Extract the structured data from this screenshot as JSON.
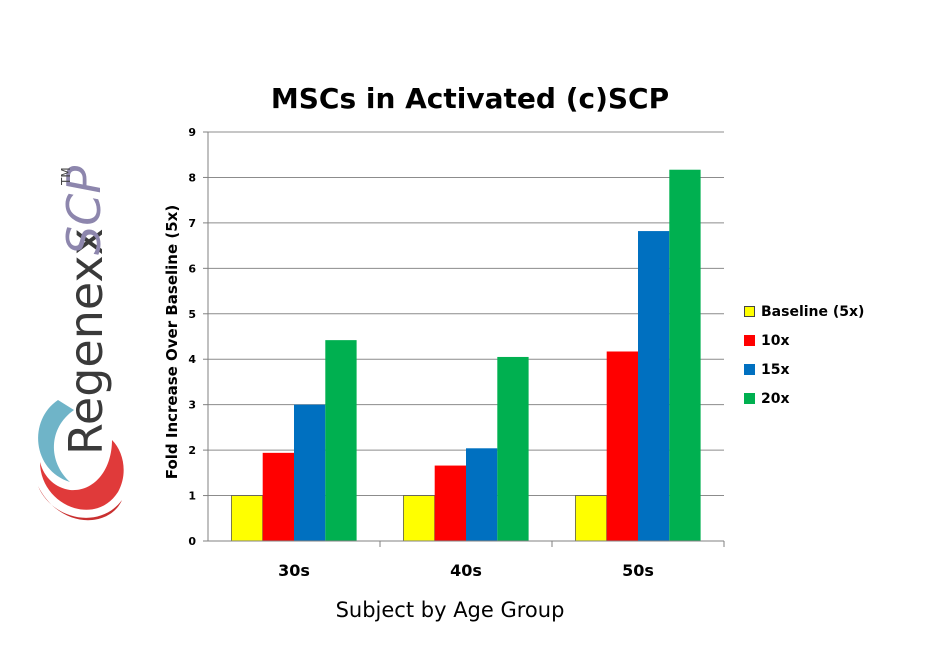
{
  "logo": {
    "brand": "Regenexx",
    "suffix": "SCP",
    "trademark": "TM"
  },
  "chart_data": {
    "type": "bar",
    "title": "MSCs in Activated (c)SCP",
    "xlabel": "Subject by Age Group",
    "ylabel": "Fold Increase Over Baseline (5x)",
    "categories": [
      "30s",
      "40s",
      "50s"
    ],
    "ylim": [
      0,
      9
    ],
    "yticks": [
      0,
      1,
      2,
      3,
      4,
      5,
      6,
      7,
      8,
      9
    ],
    "grid": true,
    "legend_position": "right",
    "series": [
      {
        "name": "Baseline (5x)",
        "color": "#ffff00",
        "values": [
          1,
          1,
          1
        ]
      },
      {
        "name": "10x",
        "color": "#ff0000",
        "values": [
          1.94,
          1.66,
          4.17
        ]
      },
      {
        "name": "15x",
        "color": "#0070c0",
        "values": [
          3.0,
          2.04,
          6.82
        ]
      },
      {
        "name": "20x",
        "color": "#00b050",
        "values": [
          4.42,
          4.05,
          8.17
        ]
      }
    ]
  }
}
